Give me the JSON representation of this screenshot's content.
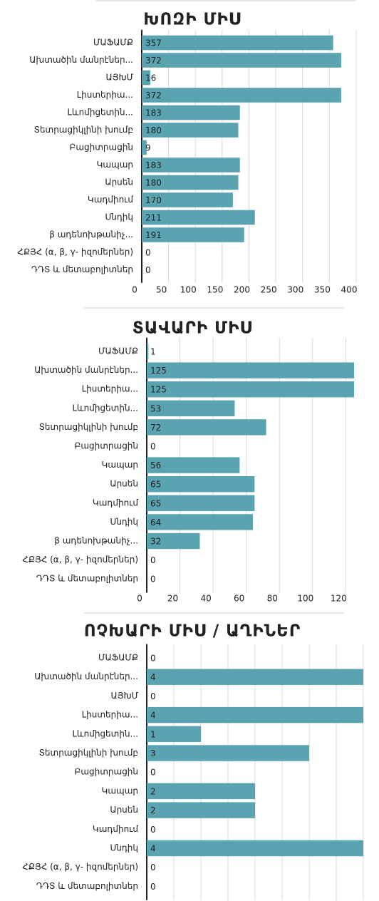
{
  "chart_data": [
    {
      "type": "bar",
      "orientation": "horizontal",
      "title": "ԽՈԶԻ ՄԻՍ",
      "color": "#5aa3b0",
      "grid": true,
      "categories": [
        "ՄԱՖԱՄՔ",
        "Ախտածին մանրէներ...",
        "ԱՅԽՄ",
        "Լիստերիա...",
        "Լևոմիցետին...",
        "Տետրացիկլինի խումբ",
        "Բացիտրացին",
        "Կապար",
        "Արսեն",
        "Կադմիում",
        "Սնդիկ",
        "β ադենոխթանիչ...",
        "ՀՔՅՀ (α, β, γ- իզոմերներ)",
        "ԴԴՏ և մետաբոլիտներ"
      ],
      "values": [
        357,
        372,
        16,
        372,
        183,
        180,
        9,
        183,
        180,
        170,
        211,
        191,
        0,
        0
      ],
      "xlim": [
        0,
        400
      ],
      "xticks": [
        0,
        50,
        100,
        150,
        200,
        250,
        300,
        350,
        400
      ],
      "xtick_labels": true
    },
    {
      "type": "bar",
      "orientation": "horizontal",
      "title": "ՏԱՎԱՐԻ ՄԻՍ",
      "color": "#5aa3b0",
      "grid": true,
      "categories": [
        "ՄԱՖԱՄՔ",
        "Ախտածին մանրէներ...",
        "Լիստերիա...",
        "Լևոմիցետին...",
        "Տետրացիկլինի խումբ",
        "Բացիտրացին",
        "Կապար",
        "Արսեն",
        "Կադմիում",
        "Սնդիկ",
        "β ադենոխթանիչ...",
        "ՀՔՅՀ (α, β, γ- իզոմերներ)",
        "ԴԴՏ և մետաբոլիտներ"
      ],
      "values": [
        1,
        125,
        125,
        53,
        72,
        0,
        56,
        65,
        65,
        64,
        32,
        0,
        0
      ],
      "xlim": [
        0,
        125
      ],
      "xticks": [
        0,
        20,
        40,
        60,
        80,
        100,
        120
      ],
      "xtick_labels": true
    },
    {
      "type": "bar",
      "orientation": "horizontal",
      "title": "ՈՉԽԱՐԻ ՄԻՍ / ԱՂԻՆԵՐ",
      "color": "#5aa3b0",
      "grid": true,
      "categories": [
        "ՄԱՖԱՄՔ",
        "Ախտածին մանրէներ...",
        "ԱՅԽՄ",
        "Լիստերիա...",
        "Լևոմիցետին...",
        "Տետրացիկլինի խումբ",
        "Բացիտրացին",
        "Կապար",
        "Արսեն",
        "Կադմիում",
        "Սնդիկ",
        "ՀՔՅՀ (α, β, γ- իզոմերներ)",
        "ԴԴՏ և մետաբոլիտներ"
      ],
      "values": [
        0,
        4,
        0,
        4,
        1,
        3,
        0,
        2,
        2,
        0,
        4,
        0,
        0
      ],
      "xlim": [
        0,
        4
      ],
      "xticks": [
        0,
        0.5,
        1,
        1.5,
        2,
        2.5,
        3,
        3.5,
        4
      ],
      "xtick_labels": false
    }
  ]
}
